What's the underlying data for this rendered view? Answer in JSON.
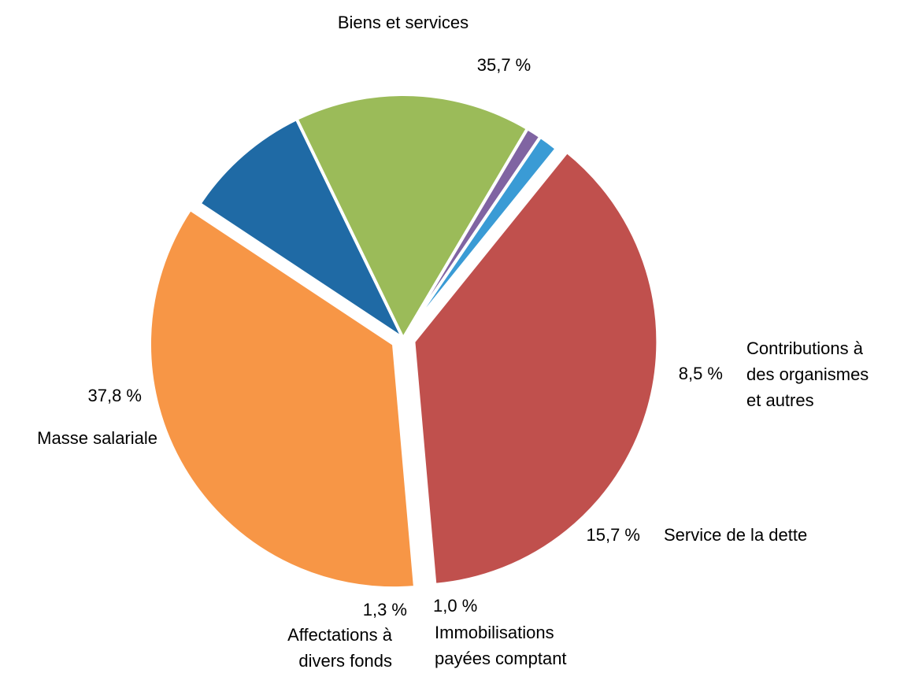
{
  "chart_data": {
    "type": "pie",
    "unit": "%",
    "slices": [
      {
        "label": [
          "Biens et services"
        ],
        "value": 35.7,
        "value_label": "35,7 %",
        "color": "#F79646",
        "exploded": true
      },
      {
        "label": [
          "Contributions à",
          "des organismes",
          "et autres"
        ],
        "value": 8.5,
        "value_label": "8,5 %",
        "color": "#1F6AA5",
        "exploded": false
      },
      {
        "label": [
          "Service de la dette"
        ],
        "value": 15.7,
        "value_label": "15,7 %",
        "color": "#9BBB59",
        "exploded": false
      },
      {
        "label": [
          "Immobilisations",
          "payées comptant"
        ],
        "value": 1.0,
        "value_label": "1,0 %",
        "color": "#8064A2",
        "exploded": false
      },
      {
        "label": [
          "Affectations à",
          "divers fonds"
        ],
        "value": 1.3,
        "value_label": "1,3 %",
        "color": "#3A9BD5",
        "exploded": false
      },
      {
        "label": [
          "Masse salariale"
        ],
        "value": 37.8,
        "value_label": "37,8 %",
        "color": "#C0504D",
        "exploded": true
      }
    ]
  }
}
